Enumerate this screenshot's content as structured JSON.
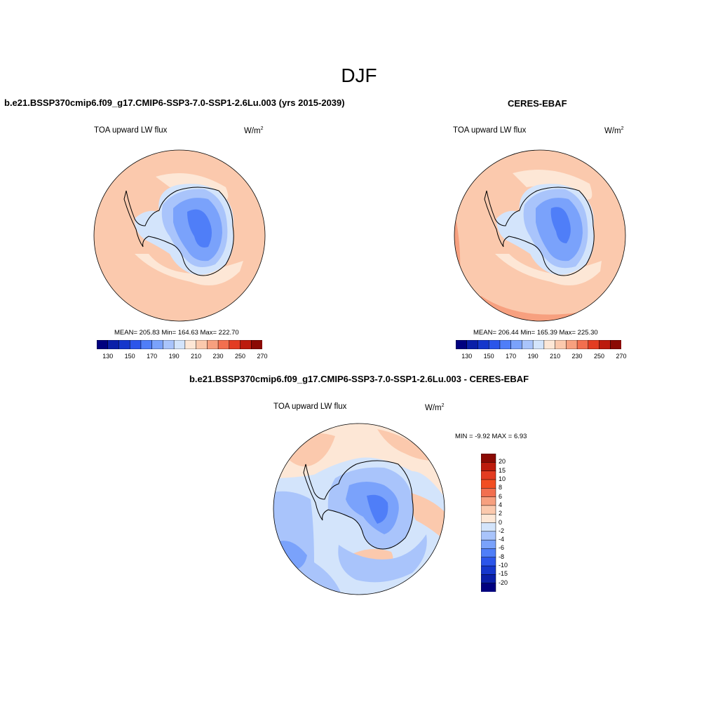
{
  "figure": {
    "title": "DJF",
    "left_panel_title": "b.e21.BSSP370cmip6.f09_g17.CMIP6-SSP3-7.0-SSP1-2.6Lu.003 (yrs 2015-2039)",
    "right_panel_title": "CERES-EBAF",
    "diff_panel_title": "b.e21.BSSP370cmip6.f09_g17.CMIP6-SSP3-7.0-SSP1-2.6Lu.003 - CERES-EBAF"
  },
  "maps": {
    "model": {
      "variable": "TOA upward LW flux",
      "unit_base": "W/m",
      "unit_exp": "2",
      "stats": "MEAN= 205.83  Min= 164.63  Max= 222.70"
    },
    "obs": {
      "variable": "TOA upward LW flux",
      "unit_base": "W/m",
      "unit_exp": "2",
      "stats": "MEAN= 206.44  Min= 165.39  Max= 225.30"
    },
    "diff": {
      "variable": "TOA upward LW flux",
      "unit_base": "W/m",
      "unit_exp": "2",
      "stats": "MIN =  -9.92 MAX =   6.93"
    }
  },
  "colorbar_main": {
    "labels": [
      "130",
      "150",
      "170",
      "190",
      "210",
      "230",
      "250",
      "270"
    ],
    "colors": [
      "#00007f",
      "#0a1fa8",
      "#1537cc",
      "#2b55ea",
      "#4f7ef8",
      "#7aa2fb",
      "#a9c4fb",
      "#d3e4fb",
      "#fde7d6",
      "#fbc9ad",
      "#f7a07f",
      "#f26f4f",
      "#e33c22",
      "#bc1b0d",
      "#8b0a04"
    ]
  },
  "colorbar_diff": {
    "labels": [
      "20",
      "15",
      "10",
      "8",
      "6",
      "4",
      "2",
      "0",
      "-2",
      "-4",
      "-6",
      "-8",
      "-10",
      "-15",
      "-20"
    ],
    "colors": [
      "#8b0a04",
      "#bc1b0d",
      "#e33c22",
      "#f24e22",
      "#f26f4f",
      "#f7a07f",
      "#fbc9ad",
      "#fde7d6",
      "#d3e4fb",
      "#a9c4fb",
      "#7aa2fb",
      "#4f7ef8",
      "#2b55ea",
      "#1537cc",
      "#0a1fa8",
      "#00007f"
    ]
  }
}
